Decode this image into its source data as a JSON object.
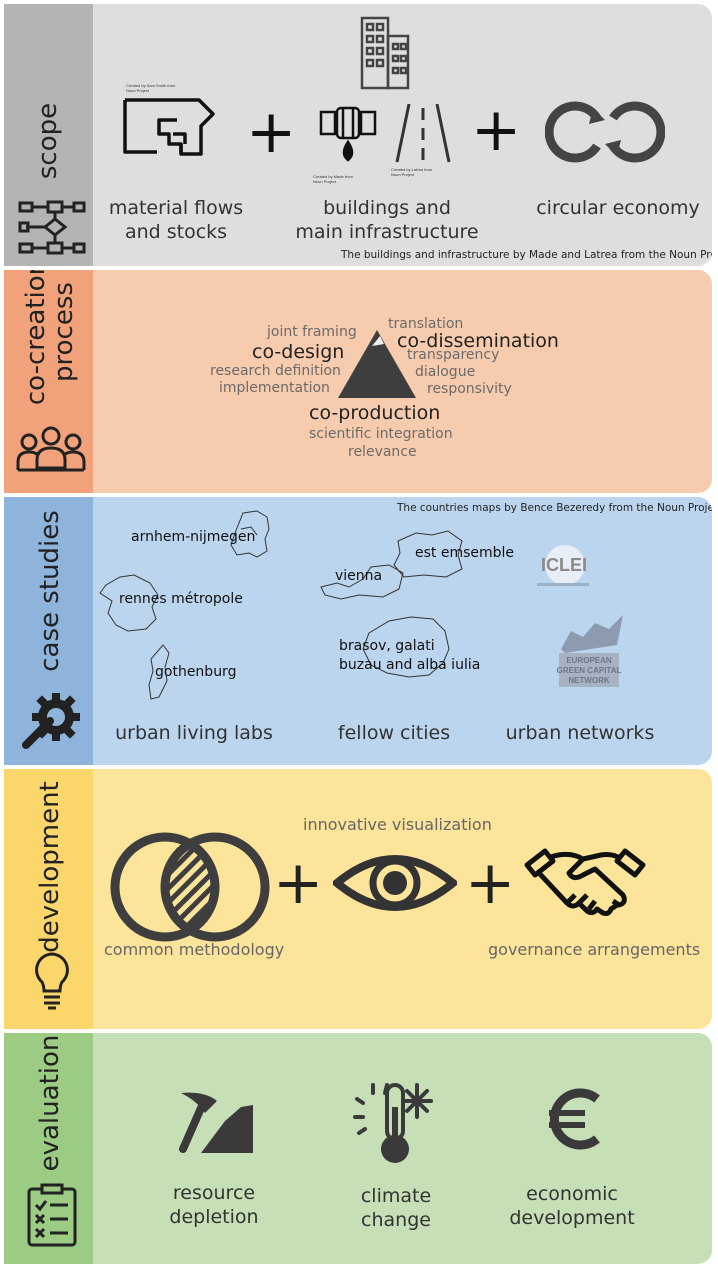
{
  "scope": {
    "label": "scope",
    "items": [
      {
        "label": "material flows\nand stocks"
      },
      {
        "label": "buildings and\nmain infrastructure"
      },
      {
        "label": "circular economy"
      }
    ],
    "credit": "The buildings and infrastructure by Made and Latrea from the Noun Project",
    "tiny_credits": [
      "Created by Sam Smith from Noun Project",
      "Created by Made from Noun Project",
      "Created by Latrea from Noun Project"
    ]
  },
  "cocreation": {
    "label": "co-creation\nprocess",
    "codesign": {
      "heading": "co-design",
      "terms": [
        "joint framing",
        "research definition",
        "implementation"
      ]
    },
    "codissemination": {
      "heading": "co-dissemination",
      "terms": [
        "translation",
        "transparency",
        "dialogue",
        "responsivity"
      ]
    },
    "coproduction": {
      "heading": "co-production",
      "terms": [
        "scientific integration",
        "relevance"
      ]
    }
  },
  "casestudies": {
    "label": "case studies",
    "credit": "The countries maps by Bence Bezeredy from the Noun Project",
    "cities": [
      "arnhem-nijmegen",
      "rennes métropole",
      "gothenburg",
      "est emsemble",
      "vienna",
      "brasov, galati\nbuzau and alba iulia"
    ],
    "categories": [
      "urban living labs",
      "fellow cities",
      "urban networks"
    ],
    "logos": [
      "ICLEI",
      "EUROPEAN GREEN CAPITAL NETWORK"
    ]
  },
  "development": {
    "label": "development",
    "top": "innovative visualization",
    "left": "common methodology",
    "right": "governance arrangements"
  },
  "evaluation": {
    "label": "evaluation",
    "items": [
      "resource\ndepletion",
      "climate\nchange",
      "economic\ndevelopment"
    ]
  },
  "colors": {
    "scope_side": "#b4b4b4",
    "scope_body": "#dedede",
    "cocreation_side": "#f1a27b",
    "cocreation_body": "#f7cbad",
    "casestudies_side": "#8fb4dc",
    "casestudies_body": "#bcd5ee",
    "development_side": "#fbd66a",
    "development_body": "#fde49b",
    "evaluation_side": "#9ccb84",
    "evaluation_body": "#c6dfb6"
  }
}
